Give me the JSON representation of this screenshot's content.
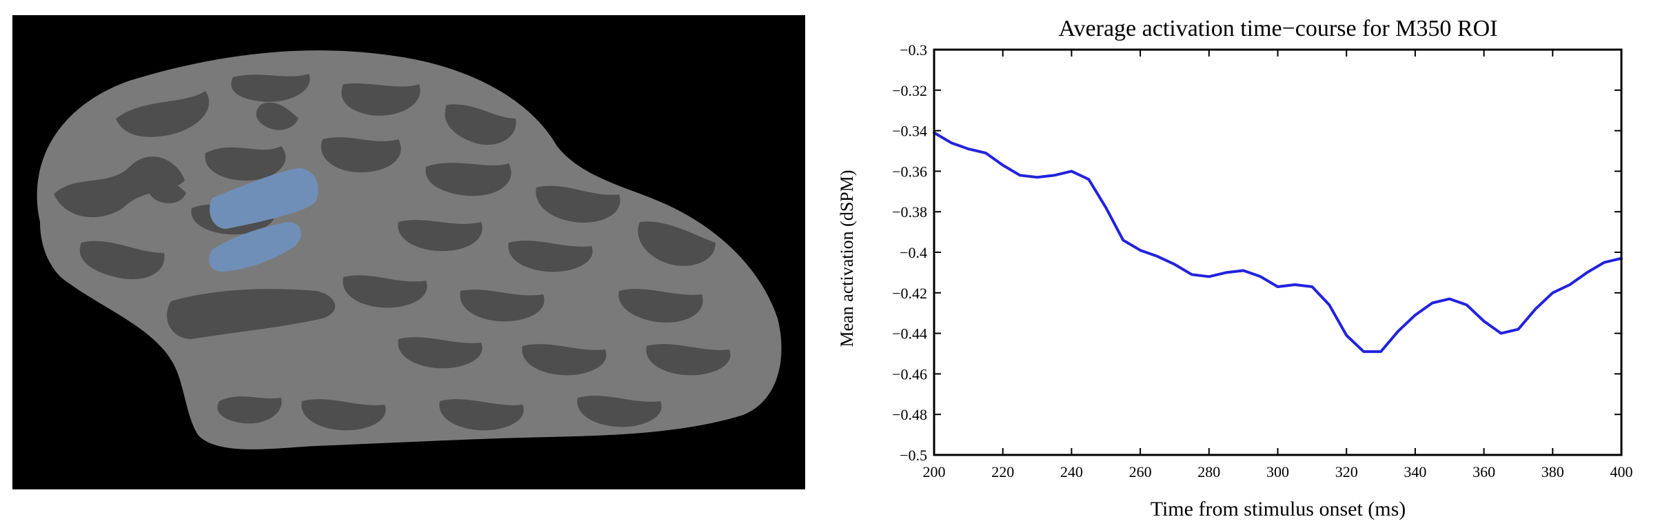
{
  "brain_figure": {
    "description_icon": "inflated-cortex-surface-icon",
    "colors": {
      "background": "#000000",
      "gyri": "#7a7a7a",
      "sulci": "#4e4e4e",
      "roi": "#6f8fb8"
    }
  },
  "chart_data": {
    "type": "line",
    "title": "Average activation time−course for M350 ROI",
    "xlabel": "Time from stimulus onset (ms)",
    "ylabel": "Mean activation (dSPM)",
    "xlim": [
      200,
      400
    ],
    "ylim": [
      -0.5,
      -0.3
    ],
    "xticks": [
      200,
      220,
      240,
      260,
      280,
      300,
      320,
      340,
      360,
      380,
      400
    ],
    "yticks": [
      -0.3,
      -0.32,
      -0.34,
      -0.36,
      -0.38,
      -0.4,
      -0.42,
      -0.44,
      -0.46,
      -0.48,
      -0.5
    ],
    "xtick_labels": [
      "200",
      "220",
      "240",
      "260",
      "280",
      "300",
      "320",
      "340",
      "360",
      "380",
      "400"
    ],
    "ytick_labels": [
      "−0.3",
      "−0.32",
      "−0.34",
      "−0.36",
      "−0.38",
      "−0.4",
      "−0.42",
      "−0.44",
      "−0.46",
      "−0.48",
      "−0.5"
    ],
    "grid": false,
    "series": [
      {
        "color": "#2222dd",
        "x": [
          200,
          205,
          210,
          215,
          220,
          225,
          230,
          235,
          240,
          245,
          250,
          255,
          260,
          265,
          270,
          275,
          280,
          285,
          290,
          295,
          300,
          305,
          310,
          315,
          320,
          325,
          330,
          335,
          340,
          345,
          350,
          355,
          360,
          365,
          370,
          375,
          380,
          385,
          390,
          395,
          400
        ],
        "y": [
          -0.341,
          -0.346,
          -0.349,
          -0.351,
          -0.357,
          -0.362,
          -0.363,
          -0.362,
          -0.36,
          -0.364,
          -0.378,
          -0.394,
          -0.399,
          -0.402,
          -0.406,
          -0.411,
          -0.412,
          -0.41,
          -0.409,
          -0.412,
          -0.417,
          -0.416,
          -0.417,
          -0.426,
          -0.441,
          -0.449,
          -0.449,
          -0.439,
          -0.431,
          -0.425,
          -0.423,
          -0.426,
          -0.434,
          -0.44,
          -0.438,
          -0.428,
          -0.42,
          -0.416,
          -0.41,
          -0.405,
          -0.403
        ]
      }
    ]
  }
}
